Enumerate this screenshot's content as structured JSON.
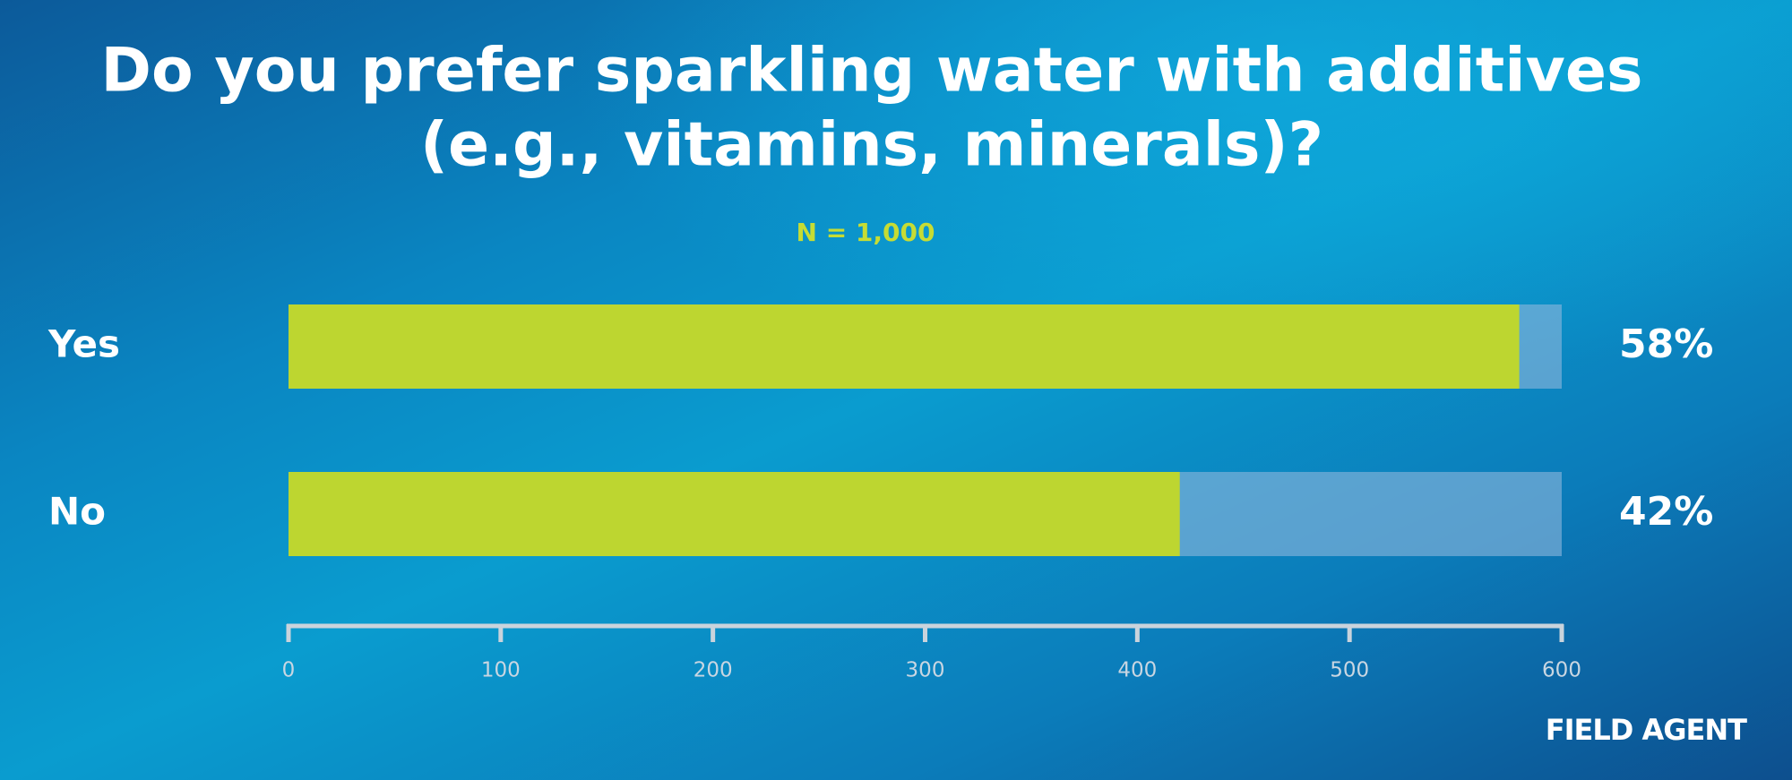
{
  "chart_data": {
    "type": "bar",
    "orientation": "horizontal",
    "title": [
      "Do you prefer sparkling water with additives",
      "(e.g., vitamins, minerals)?"
    ],
    "subtitle": "N = 1,000",
    "categories": [
      "Yes",
      "No"
    ],
    "values": [
      580,
      420
    ],
    "value_labels": [
      "58%",
      "42%"
    ],
    "color": "#bdd630",
    "track_color": "#8fb8dc",
    "xlim": [
      0,
      600
    ],
    "xticks": [
      0,
      100,
      200,
      300,
      400,
      500,
      600
    ],
    "logo": "FIELD AGENT"
  }
}
